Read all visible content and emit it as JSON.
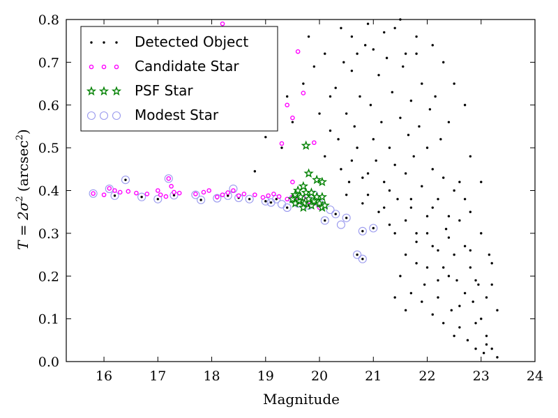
{
  "chart_data": {
    "type": "scatter",
    "xlabel": "Magnitude",
    "ylabel_prefix": "T = 2σ",
    "ylabel_sq": "2",
    "ylabel_unit": "(arcsec",
    "ylabel_unit_sq": "2",
    "ylabel_close": ")",
    "xlim": [
      15.3,
      24
    ],
    "ylim": [
      0,
      0.8
    ],
    "xticks": [
      16,
      17,
      18,
      19,
      20,
      21,
      22,
      23,
      24
    ],
    "yticks": [
      0.0,
      0.1,
      0.2,
      0.3,
      0.4,
      0.5,
      0.6,
      0.7,
      0.8
    ],
    "xtick_labels": [
      "16",
      "17",
      "18",
      "19",
      "20",
      "21",
      "22",
      "23",
      "24"
    ],
    "ytick_labels": [
      "0.0",
      "0.1",
      "0.2",
      "0.3",
      "0.4",
      "0.5",
      "0.6",
      "0.7",
      "0.8"
    ],
    "legend_position": "top-left",
    "colors": {
      "detected": "#000000",
      "candidate": "#ff00ff",
      "psf": "#008000",
      "modest": "#9999ee"
    },
    "series": [
      {
        "name": "Detected Object",
        "marker": "dot",
        "points": [
          [
            15.8,
            0.393
          ],
          [
            16.1,
            0.404
          ],
          [
            16.2,
            0.388
          ],
          [
            16.4,
            0.425
          ],
          [
            16.7,
            0.385
          ],
          [
            17.0,
            0.38
          ],
          [
            17.3,
            0.389
          ],
          [
            17.7,
            0.39
          ],
          [
            17.8,
            0.378
          ],
          [
            18.1,
            0.382
          ],
          [
            18.3,
            0.388
          ],
          [
            18.5,
            0.383
          ],
          [
            18.7,
            0.38
          ],
          [
            19.0,
            0.375
          ],
          [
            19.1,
            0.372
          ],
          [
            19.2,
            0.38
          ],
          [
            19.4,
            0.36
          ],
          [
            19.6,
            0.37
          ],
          [
            19.8,
            0.365
          ],
          [
            20.1,
            0.33
          ],
          [
            20.3,
            0.345
          ],
          [
            20.5,
            0.336
          ],
          [
            20.7,
            0.25
          ],
          [
            20.8,
            0.24
          ],
          [
            20.8,
            0.305
          ],
          [
            21.0,
            0.312
          ],
          [
            18.2,
            0.79
          ],
          [
            18.8,
            0.445
          ],
          [
            19.0,
            0.525
          ],
          [
            19.3,
            0.5
          ],
          [
            19.4,
            0.62
          ],
          [
            19.5,
            0.56
          ],
          [
            19.7,
            0.65
          ],
          [
            19.8,
            0.76
          ],
          [
            19.9,
            0.69
          ],
          [
            20.0,
            0.58
          ],
          [
            20.1,
            0.48
          ],
          [
            20.2,
            0.62
          ],
          [
            20.1,
            0.72
          ],
          [
            20.2,
            0.54
          ],
          [
            20.3,
            0.64
          ],
          [
            20.35,
            0.52
          ],
          [
            20.4,
            0.45
          ],
          [
            20.45,
            0.7
          ],
          [
            20.5,
            0.58
          ],
          [
            20.55,
            0.42
          ],
          [
            20.6,
            0.68
          ],
          [
            20.65,
            0.55
          ],
          [
            20.7,
            0.5
          ],
          [
            20.75,
            0.62
          ],
          [
            20.8,
            0.43
          ],
          [
            20.85,
            0.74
          ],
          [
            20.9,
            0.39
          ],
          [
            20.95,
            0.6
          ],
          [
            21.0,
            0.52
          ],
          [
            21.05,
            0.47
          ],
          [
            21.1,
            0.67
          ],
          [
            21.1,
            0.35
          ],
          [
            21.15,
            0.56
          ],
          [
            21.2,
            0.42
          ],
          [
            21.25,
            0.71
          ],
          [
            21.3,
            0.5
          ],
          [
            21.3,
            0.32
          ],
          [
            21.35,
            0.63
          ],
          [
            21.4,
            0.46
          ],
          [
            21.4,
            0.78
          ],
          [
            21.45,
            0.38
          ],
          [
            21.5,
            0.57
          ],
          [
            21.55,
            0.69
          ],
          [
            21.6,
            0.44
          ],
          [
            21.6,
            0.25
          ],
          [
            21.65,
            0.53
          ],
          [
            21.7,
            0.61
          ],
          [
            21.7,
            0.36
          ],
          [
            21.75,
            0.48
          ],
          [
            21.8,
            0.72
          ],
          [
            21.8,
            0.3
          ],
          [
            21.85,
            0.55
          ],
          [
            21.9,
            0.41
          ],
          [
            21.9,
            0.65
          ],
          [
            21.95,
            0.18
          ],
          [
            22.0,
            0.5
          ],
          [
            22.0,
            0.34
          ],
          [
            22.05,
            0.59
          ],
          [
            22.1,
            0.27
          ],
          [
            22.1,
            0.45
          ],
          [
            22.15,
            0.62
          ],
          [
            22.2,
            0.38
          ],
          [
            22.2,
            0.15
          ],
          [
            22.25,
            0.52
          ],
          [
            22.3,
            0.22
          ],
          [
            22.3,
            0.43
          ],
          [
            22.35,
            0.31
          ],
          [
            22.4,
            0.56
          ],
          [
            22.45,
            0.12
          ],
          [
            22.5,
            0.25
          ],
          [
            22.5,
            0.4
          ],
          [
            22.55,
            0.19
          ],
          [
            22.6,
            0.33
          ],
          [
            22.6,
            0.08
          ],
          [
            22.7,
            0.16
          ],
          [
            22.7,
            0.27
          ],
          [
            22.75,
            0.05
          ],
          [
            22.8,
            0.22
          ],
          [
            22.85,
            0.14
          ],
          [
            22.9,
            0.03
          ],
          [
            22.95,
            0.18
          ],
          [
            23.0,
            0.1
          ],
          [
            23.05,
            0.02
          ],
          [
            23.1,
            0.06
          ],
          [
            23.15,
            0.25
          ],
          [
            23.2,
            0.03
          ],
          [
            23.3,
            0.01
          ],
          [
            20.4,
            0.78
          ],
          [
            20.6,
            0.76
          ],
          [
            20.9,
            0.79
          ],
          [
            21.2,
            0.77
          ],
          [
            21.5,
            0.8
          ],
          [
            21.8,
            0.76
          ],
          [
            22.1,
            0.74
          ],
          [
            21.0,
            0.73
          ],
          [
            20.7,
            0.72
          ],
          [
            21.6,
            0.72
          ],
          [
            22.3,
            0.7
          ],
          [
            22.5,
            0.65
          ],
          [
            22.7,
            0.6
          ],
          [
            22.8,
            0.48
          ],
          [
            22.6,
            0.42
          ],
          [
            20.6,
            0.47
          ],
          [
            20.9,
            0.44
          ],
          [
            21.3,
            0.4
          ],
          [
            21.7,
            0.38
          ],
          [
            22.1,
            0.36
          ],
          [
            22.4,
            0.34
          ],
          [
            20.5,
            0.39
          ],
          [
            20.8,
            0.37
          ],
          [
            21.2,
            0.36
          ],
          [
            21.6,
            0.33
          ],
          [
            22.0,
            0.3
          ],
          [
            22.4,
            0.29
          ],
          [
            22.8,
            0.26
          ],
          [
            23.0,
            0.3
          ],
          [
            21.4,
            0.3
          ],
          [
            21.8,
            0.28
          ],
          [
            22.2,
            0.26
          ],
          [
            21.5,
            0.2
          ],
          [
            21.7,
            0.16
          ],
          [
            21.9,
            0.14
          ],
          [
            22.1,
            0.11
          ],
          [
            22.3,
            0.09
          ],
          [
            22.5,
            0.06
          ],
          [
            22.4,
            0.2
          ],
          [
            22.6,
            0.13
          ],
          [
            21.4,
            0.15
          ],
          [
            21.6,
            0.12
          ],
          [
            21.8,
            0.23
          ],
          [
            22.0,
            0.22
          ],
          [
            22.2,
            0.19
          ],
          [
            22.9,
            0.09
          ],
          [
            23.1,
            0.15
          ],
          [
            23.2,
            0.23
          ],
          [
            23.3,
            0.12
          ],
          [
            22.7,
            0.38
          ],
          [
            23.0,
            0.42
          ],
          [
            22.8,
            0.35
          ],
          [
            22.9,
            0.19
          ],
          [
            23.1,
            0.04
          ],
          [
            23.2,
            0.18
          ]
        ]
      },
      {
        "name": "Candidate Star",
        "marker": "circle-small",
        "points": [
          [
            15.8,
            0.393
          ],
          [
            16.0,
            0.39
          ],
          [
            16.1,
            0.405
          ],
          [
            16.2,
            0.4
          ],
          [
            16.3,
            0.396
          ],
          [
            16.45,
            0.398
          ],
          [
            16.6,
            0.394
          ],
          [
            16.8,
            0.392
          ],
          [
            17.0,
            0.4
          ],
          [
            17.05,
            0.39
          ],
          [
            17.15,
            0.386
          ],
          [
            17.2,
            0.428
          ],
          [
            17.25,
            0.41
          ],
          [
            17.3,
            0.396
          ],
          [
            17.4,
            0.394
          ],
          [
            17.7,
            0.392
          ],
          [
            17.85,
            0.396
          ],
          [
            17.95,
            0.4
          ],
          [
            18.1,
            0.385
          ],
          [
            18.2,
            0.39
          ],
          [
            18.3,
            0.395
          ],
          [
            18.4,
            0.4
          ],
          [
            18.5,
            0.388
          ],
          [
            18.6,
            0.392
          ],
          [
            18.8,
            0.39
          ],
          [
            18.95,
            0.384
          ],
          [
            19.05,
            0.388
          ],
          [
            19.15,
            0.392
          ],
          [
            19.25,
            0.386
          ],
          [
            19.4,
            0.38
          ],
          [
            19.5,
            0.385
          ],
          [
            19.6,
            0.378
          ],
          [
            19.7,
            0.382
          ],
          [
            19.8,
            0.374
          ],
          [
            19.9,
            0.37
          ],
          [
            20.0,
            0.36
          ],
          [
            18.2,
            0.79
          ],
          [
            19.6,
            0.725
          ],
          [
            19.7,
            0.628
          ],
          [
            19.4,
            0.6
          ],
          [
            19.5,
            0.57
          ],
          [
            19.3,
            0.51
          ],
          [
            19.5,
            0.42
          ],
          [
            19.9,
            0.512
          ]
        ]
      },
      {
        "name": "PSF Star",
        "marker": "star",
        "points": [
          [
            19.5,
            0.38
          ],
          [
            19.55,
            0.39
          ],
          [
            19.6,
            0.4
          ],
          [
            19.62,
            0.375
          ],
          [
            19.65,
            0.385
          ],
          [
            19.7,
            0.41
          ],
          [
            19.72,
            0.37
          ],
          [
            19.75,
            0.395
          ],
          [
            19.8,
            0.38
          ],
          [
            19.85,
            0.365
          ],
          [
            19.9,
            0.375
          ],
          [
            19.95,
            0.385
          ],
          [
            20.0,
            0.37
          ],
          [
            20.05,
            0.36
          ],
          [
            20.1,
            0.365
          ],
          [
            19.8,
            0.44
          ],
          [
            19.95,
            0.425
          ],
          [
            20.05,
            0.42
          ],
          [
            19.75,
            0.505
          ],
          [
            20.05,
            0.385
          ],
          [
            19.55,
            0.37
          ],
          [
            19.7,
            0.36
          ],
          [
            19.85,
            0.395
          ]
        ]
      },
      {
        "name": "Modest Star",
        "marker": "circle-large",
        "points": [
          [
            15.8,
            0.393
          ],
          [
            16.1,
            0.404
          ],
          [
            16.2,
            0.388
          ],
          [
            16.4,
            0.425
          ],
          [
            16.7,
            0.385
          ],
          [
            17.0,
            0.38
          ],
          [
            17.2,
            0.428
          ],
          [
            17.3,
            0.389
          ],
          [
            17.7,
            0.39
          ],
          [
            17.8,
            0.378
          ],
          [
            18.1,
            0.382
          ],
          [
            18.3,
            0.388
          ],
          [
            18.4,
            0.404
          ],
          [
            18.5,
            0.383
          ],
          [
            18.7,
            0.38
          ],
          [
            19.0,
            0.375
          ],
          [
            19.1,
            0.372
          ],
          [
            19.2,
            0.38
          ],
          [
            19.3,
            0.368
          ],
          [
            19.4,
            0.36
          ],
          [
            19.6,
            0.37
          ],
          [
            19.8,
            0.365
          ],
          [
            19.9,
            0.39
          ],
          [
            20.1,
            0.33
          ],
          [
            20.3,
            0.345
          ],
          [
            20.4,
            0.32
          ],
          [
            20.5,
            0.336
          ],
          [
            20.7,
            0.25
          ],
          [
            20.8,
            0.24
          ],
          [
            20.8,
            0.305
          ],
          [
            21.0,
            0.312
          ],
          [
            19.5,
            0.38
          ],
          [
            19.7,
            0.378
          ],
          [
            20.0,
            0.37
          ],
          [
            20.2,
            0.355
          ]
        ]
      }
    ]
  }
}
